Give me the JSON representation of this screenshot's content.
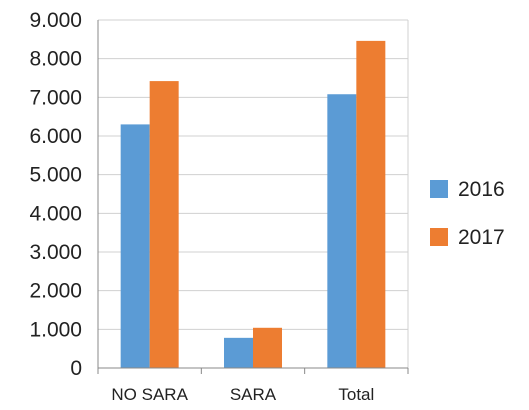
{
  "chart_data": {
    "type": "bar",
    "categories": [
      "NO SARA",
      "SARA",
      "Total"
    ],
    "series": [
      {
        "name": "2016",
        "values": [
          6300,
          780,
          7080
        ]
      },
      {
        "name": "2017",
        "values": [
          7420,
          1040,
          8460
        ]
      }
    ],
    "ylim": [
      0,
      9000
    ],
    "y_ticks": [
      "0",
      "1.000",
      "2.000",
      "3.000",
      "4.000",
      "5.000",
      "6.000",
      "7.000",
      "8.000",
      "9.000"
    ],
    "y_tick_values": [
      0,
      1000,
      2000,
      3000,
      4000,
      5000,
      6000,
      7000,
      8000,
      9000
    ],
    "grid": true,
    "legend_position": "right",
    "colors": {
      "2016": "#5b9bd5",
      "2017": "#ed7d31",
      "grid": "#d0d0d0",
      "axis": "#888888"
    }
  }
}
